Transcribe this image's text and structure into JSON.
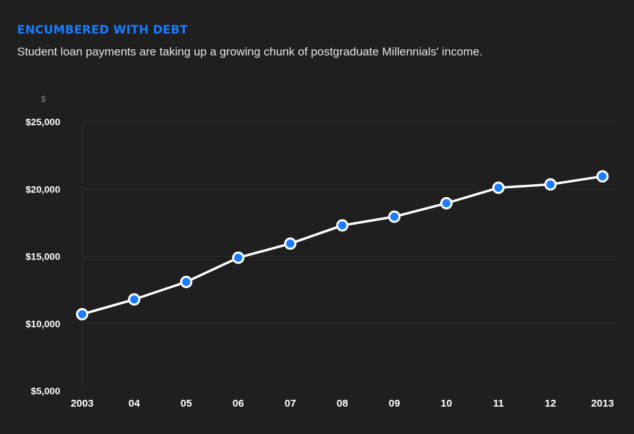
{
  "header": {
    "title": "ENCUMBERED WITH DEBT",
    "subtitle": "Student loan payments are taking up a growing chunk of postgraduate Millennials' income."
  },
  "colors": {
    "background": "#1f1f1f",
    "title": "#1a7cff",
    "line": "#ffffff",
    "marker": "#1a7cff",
    "grid": "#2c2c2c"
  },
  "chart_data": {
    "type": "line",
    "unit_label": "$",
    "categories": [
      "2003",
      "04",
      "05",
      "06",
      "07",
      "08",
      "09",
      "10",
      "11",
      "12",
      "2013"
    ],
    "series": [
      {
        "values": [
          10700,
          11800,
          13100,
          14900,
          15950,
          17300,
          17950,
          18950,
          20100,
          20350,
          20950
        ]
      }
    ],
    "ylim": [
      5000,
      25000
    ],
    "yticks": [
      25000,
      20000,
      15000,
      10000,
      5000
    ],
    "ytick_labels": [
      "$25,000",
      "$20,000",
      "$15,000",
      "$10,000",
      "$5,000"
    ],
    "grid": true,
    "legend": "none"
  }
}
